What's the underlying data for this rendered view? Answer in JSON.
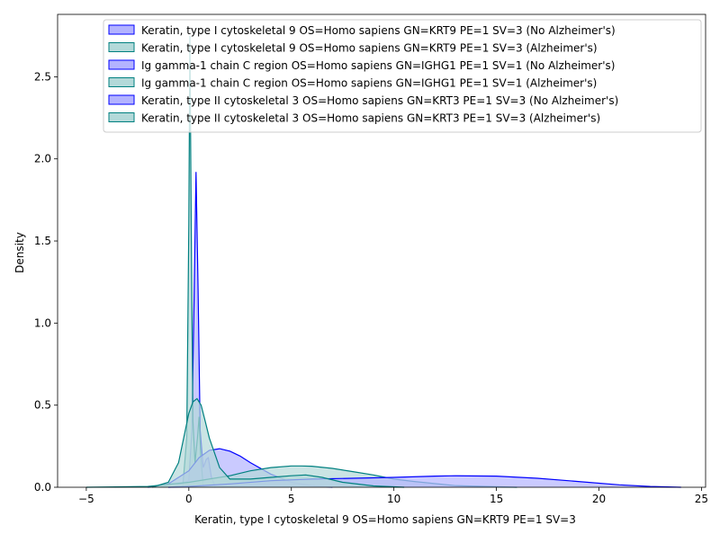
{
  "chart_data": {
    "type": "area",
    "xlabel": "Keratin, type I cytoskeletal 9 OS=Homo sapiens GN=KRT9 PE=1 SV=3",
    "ylabel": "Density",
    "xlim": [
      -6.4,
      25.2
    ],
    "ylim": [
      0,
      2.88
    ],
    "xticks": [
      -5,
      0,
      5,
      10,
      15,
      20,
      25
    ],
    "yticks": [
      0.0,
      0.5,
      1.0,
      1.5,
      2.0,
      2.5
    ],
    "xtick_labels": [
      "−5",
      "0",
      "5",
      "10",
      "15",
      "20",
      "25"
    ],
    "ytick_labels": [
      "0.0",
      "0.5",
      "1.0",
      "1.5",
      "2.0",
      "2.5"
    ],
    "grid": false,
    "legend_position": "top-right",
    "colors": {
      "no_alzheimers": "#0000ff",
      "alzheimers": "#008080",
      "no_alzheimers_fill": "#b3b3ff",
      "alzheimers_fill": "#b3d9d9"
    },
    "series": [
      {
        "name": "Keratin, type I cytoskeletal 9 OS=Homo sapiens GN=KRT9 PE=1 SV=3 (No Alzheimer's)",
        "group": "no_alzheimers",
        "x": [
          -0.8,
          0,
          0.15,
          0.25,
          0.35,
          0.45,
          0.55,
          0.7,
          0.85,
          0.95,
          1.1,
          1.3
        ],
        "y": [
          0,
          0.04,
          0.35,
          1.1,
          1.92,
          1.2,
          0.35,
          0.12,
          0.17,
          0.18,
          0.06,
          0
        ]
      },
      {
        "name": "Keratin, type I cytoskeletal 9 OS=Homo sapiens GN=KRT9 PE=1 SV=3 (Alzheimer's)",
        "group": "alzheimers",
        "x": [
          -0.3,
          -0.1,
          0.0,
          0.05,
          0.12,
          0.2,
          0.3,
          0.42,
          0.5,
          0.58,
          0.7
        ],
        "y": [
          0,
          0.3,
          1.6,
          2.75,
          1.5,
          0.4,
          0.15,
          0.3,
          0.43,
          0.2,
          0
        ]
      },
      {
        "name": "Ig gamma-1 chain C region OS=Homo sapiens GN=IGHG1 PE=1 SV=1 (No Alzheimer's)",
        "group": "no_alzheimers",
        "x": [
          -2,
          -1,
          0,
          0.5,
          1,
          1.5,
          2,
          2.5,
          3,
          4,
          5,
          6,
          7
        ],
        "y": [
          0,
          0.02,
          0.1,
          0.18,
          0.225,
          0.235,
          0.22,
          0.19,
          0.15,
          0.08,
          0.03,
          0.01,
          0
        ]
      },
      {
        "name": "Ig gamma-1 chain C region OS=Homo sapiens GN=IGHG1 PE=1 SV=1 (Alzheimer's)",
        "group": "alzheimers",
        "x": [
          -5,
          -2,
          0,
          2,
          3,
          4,
          5,
          5.5,
          6,
          7,
          8,
          9,
          10,
          11,
          13,
          16
        ],
        "y": [
          0,
          0.005,
          0.03,
          0.07,
          0.1,
          0.12,
          0.13,
          0.13,
          0.128,
          0.115,
          0.095,
          0.075,
          0.05,
          0.035,
          0.01,
          0
        ]
      },
      {
        "name": "Keratin, type II cytoskeletal 3 OS=Homo sapiens GN=KRT3 PE=1 SV=3 (No Alzheimer's)",
        "group": "no_alzheimers",
        "x": [
          -1,
          0,
          2,
          4,
          6,
          8,
          10,
          12,
          13,
          15,
          17,
          19,
          21,
          22.5,
          24
        ],
        "y": [
          0,
          0.005,
          0.02,
          0.04,
          0.05,
          0.055,
          0.06,
          0.068,
          0.07,
          0.068,
          0.055,
          0.035,
          0.015,
          0.005,
          0
        ]
      },
      {
        "name": "Keratin, type II cytoskeletal 3 OS=Homo sapiens GN=KRT3 PE=1 SV=3 (Alzheimer's)",
        "group": "alzheimers",
        "x": [
          -1.8,
          -1,
          -0.5,
          0,
          0.2,
          0.4,
          0.6,
          0.8,
          1.0,
          1.5,
          2,
          3,
          4,
          5,
          5.7,
          6.5,
          7.5,
          9,
          10.5
        ],
        "y": [
          0,
          0.03,
          0.15,
          0.45,
          0.52,
          0.54,
          0.5,
          0.4,
          0.3,
          0.12,
          0.05,
          0.05,
          0.06,
          0.07,
          0.075,
          0.06,
          0.03,
          0.008,
          0
        ]
      }
    ]
  }
}
